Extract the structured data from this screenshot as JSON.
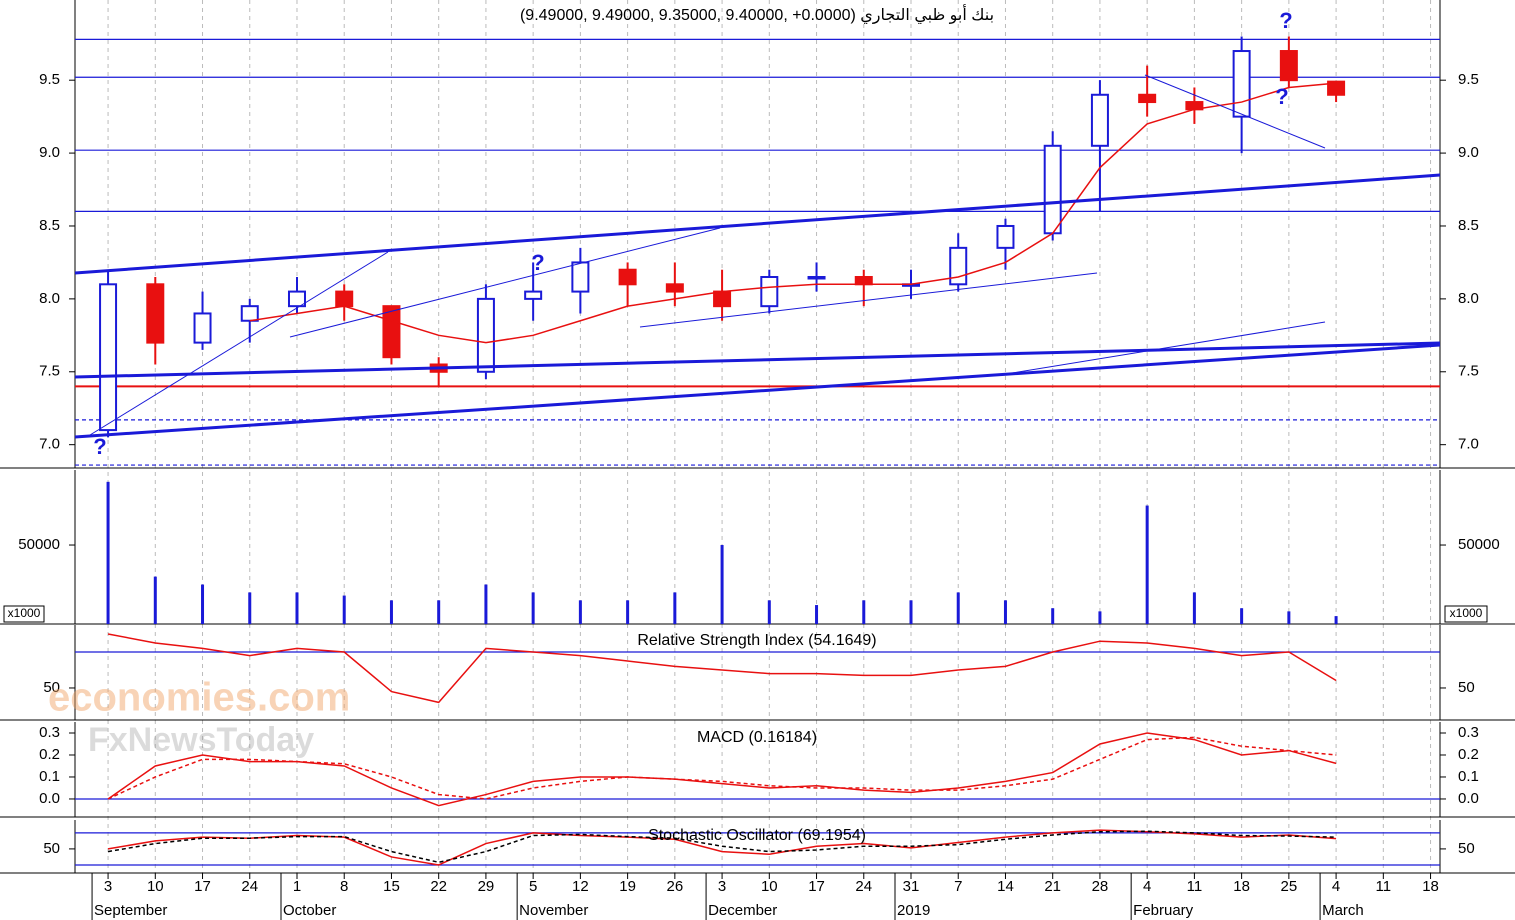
{
  "watermarks": [
    "economies.com",
    "FxNewsToday"
  ],
  "chart_data": [
    {
      "type": "candlestick",
      "title": "(9.49000, 9.49000, 9.35000, 9.40000, +0.0000) بنك أبو ظبي التجاري",
      "x": [
        0,
        1,
        2,
        3,
        4,
        5,
        6,
        7,
        8,
        9,
        10,
        11,
        12,
        13,
        14,
        15,
        16,
        17,
        18,
        19,
        20,
        21,
        22,
        23,
        24,
        25,
        26
      ],
      "open": [
        7.1,
        8.1,
        7.7,
        7.85,
        7.95,
        8.05,
        7.95,
        7.55,
        7.5,
        8.0,
        8.05,
        8.2,
        8.1,
        8.05,
        7.95,
        8.15,
        8.15,
        8.1,
        8.1,
        8.35,
        8.45,
        9.05,
        9.4,
        9.35,
        9.25,
        9.7,
        9.49
      ],
      "high": [
        8.2,
        8.15,
        8.05,
        8.0,
        8.15,
        8.1,
        7.95,
        7.6,
        8.1,
        8.25,
        8.35,
        8.25,
        8.25,
        8.2,
        8.2,
        8.25,
        8.2,
        8.2,
        8.45,
        8.55,
        9.15,
        9.5,
        9.6,
        9.45,
        9.8,
        9.8,
        9.49
      ],
      "low": [
        7.05,
        7.55,
        7.65,
        7.7,
        7.9,
        7.85,
        7.55,
        7.4,
        7.45,
        7.85,
        7.9,
        7.95,
        7.95,
        7.85,
        7.9,
        8.05,
        7.95,
        8.0,
        8.05,
        8.2,
        8.4,
        8.6,
        9.25,
        9.2,
        9.0,
        9.45,
        9.35
      ],
      "close": [
        8.1,
        7.7,
        7.9,
        7.95,
        8.05,
        7.95,
        7.6,
        7.5,
        8.0,
        8.05,
        8.25,
        8.1,
        8.05,
        7.95,
        8.15,
        8.15,
        8.1,
        8.1,
        8.35,
        8.5,
        9.05,
        9.4,
        9.35,
        9.3,
        9.7,
        9.5,
        9.4
      ],
      "up_color": "#1a1ad8",
      "down_color": "#e81010",
      "overlays": [
        {
          "color": "#e81010",
          "values": [
            null,
            null,
            null,
            7.85,
            7.9,
            7.95,
            7.85,
            7.75,
            7.7,
            7.75,
            7.85,
            7.95,
            8.0,
            8.05,
            8.08,
            8.1,
            8.1,
            8.1,
            8.15,
            8.25,
            8.45,
            8.9,
            9.2,
            9.3,
            9.35,
            9.45,
            9.48
          ]
        }
      ],
      "levels": [
        {
          "value": 9.78,
          "color": "#1a1ad8"
        },
        {
          "value": 9.52,
          "color": "#1a1ad8"
        },
        {
          "value": 9.02,
          "color": "#1a1ad8"
        },
        {
          "value": 8.6,
          "color": "#1a1ad8"
        },
        {
          "value": 7.4,
          "color": "#e81010",
          "width": 2
        },
        {
          "value": 7.17,
          "color": "#1a1ad8",
          "dashed": true
        },
        {
          "value": 6.86,
          "color": "#1a1ad8",
          "dashed": true
        }
      ],
      "annotations": [
        "?",
        "?",
        "?",
        "?"
      ],
      "xlim": [
        -0.7,
        28.2
      ],
      "xticks": [
        {
          "value": 0,
          "label": "3"
        },
        {
          "value": 1,
          "label": "10"
        },
        {
          "value": 2,
          "label": "17"
        },
        {
          "value": 3,
          "label": "24"
        },
        {
          "value": 4,
          "label": "1"
        },
        {
          "value": 5,
          "label": "8"
        },
        {
          "value": 6,
          "label": "15"
        },
        {
          "value": 7,
          "label": "22"
        },
        {
          "value": 8,
          "label": "29"
        },
        {
          "value": 9,
          "label": "5"
        },
        {
          "value": 10,
          "label": "12"
        },
        {
          "value": 11,
          "label": "19"
        },
        {
          "value": 12,
          "label": "26"
        },
        {
          "value": 13,
          "label": "3"
        },
        {
          "value": 14,
          "label": "10"
        },
        {
          "value": 15,
          "label": "17"
        },
        {
          "value": 16,
          "label": "24"
        },
        {
          "value": 17,
          "label": "31"
        },
        {
          "value": 18,
          "label": "7"
        },
        {
          "value": 19,
          "label": "14"
        },
        {
          "value": 20,
          "label": "21"
        },
        {
          "value": 21,
          "label": "28"
        },
        {
          "value": 22,
          "label": "4"
        },
        {
          "value": 23,
          "label": "11"
        },
        {
          "value": 24,
          "label": "18"
        },
        {
          "value": 25,
          "label": "25"
        },
        {
          "value": 26,
          "label": "4"
        },
        {
          "value": 27,
          "label": "11"
        },
        {
          "value": 28,
          "label": "18"
        }
      ],
      "month_labels": [
        {
          "value": 0,
          "label": "September"
        },
        {
          "value": 4,
          "label": "October"
        },
        {
          "value": 9,
          "label": "November"
        },
        {
          "value": 13,
          "label": "December"
        },
        {
          "value": 17,
          "label": "2019"
        },
        {
          "value": 22,
          "label": "February"
        },
        {
          "value": 26,
          "label": "March"
        }
      ],
      "ylim": [
        6.84,
        10.05
      ],
      "yticks": [
        {
          "value": 7,
          "label": "7.0"
        },
        7.5,
        {
          "value": 8,
          "label": "8.0"
        },
        8.5,
        {
          "value": 9,
          "label": "9.0"
        },
        9.5
      ]
    },
    {
      "type": "bar",
      "unit_label": "x1000",
      "color": "#1a1ad8",
      "values": [
        90000,
        30000,
        25000,
        20000,
        20000,
        18000,
        15000,
        15000,
        25000,
        20000,
        15000,
        15000,
        20000,
        50000,
        15000,
        12000,
        15000,
        15000,
        20000,
        15000,
        10000,
        8000,
        75000,
        20000,
        10000,
        8000,
        5000
      ],
      "ylim": [
        0,
        97500
      ],
      "yticks": [
        50000
      ]
    },
    {
      "type": "line",
      "title": "Relative Strength Index (54.1649)",
      "series": [
        {
          "color": "#e81010",
          "values": [
            80,
            75,
            72,
            68,
            72,
            70,
            48,
            42,
            72,
            70,
            68,
            65,
            62,
            60,
            58,
            58,
            57,
            57,
            60,
            62,
            70,
            76,
            75,
            72,
            68,
            70,
            54.1649
          ]
        }
      ],
      "levels": [
        {
          "value": 70,
          "color": "#1a1ad8"
        }
      ],
      "ylim": [
        32.2,
        85
      ],
      "yticks": [
        50
      ]
    },
    {
      "type": "line",
      "title": "MACD (0.16184)",
      "series": [
        {
          "color": "#e81010",
          "values": [
            0,
            0.15,
            0.2,
            0.17,
            0.17,
            0.15,
            0.05,
            -0.03,
            0.02,
            0.08,
            0.1,
            0.1,
            0.09,
            0.07,
            0.05,
            0.06,
            0.04,
            0.03,
            0.05,
            0.08,
            0.12,
            0.25,
            0.3,
            0.27,
            0.2,
            0.22,
            0.16184
          ]
        },
        {
          "color": "#e81010",
          "dashed": true,
          "values": [
            0,
            0.1,
            0.18,
            0.18,
            0.17,
            0.16,
            0.1,
            0.02,
            0,
            0.05,
            0.08,
            0.1,
            0.09,
            0.08,
            0.06,
            0.05,
            0.05,
            0.04,
            0.04,
            0.06,
            0.09,
            0.18,
            0.27,
            0.28,
            0.24,
            0.22,
            0.2
          ]
        }
      ],
      "levels": [
        {
          "value": 0,
          "color": "#1a1ad8"
        }
      ],
      "ylim": [
        -0.082,
        0.35
      ],
      "yticks": [
        {
          "value": 0,
          "label": "0.0"
        },
        0.1,
        0.2,
        0.3
      ]
    },
    {
      "type": "line",
      "title": "Stochastic Oscillator (69.1954)",
      "series": [
        {
          "color": "#e81010",
          "values": [
            50,
            65,
            72,
            70,
            75,
            72,
            35,
            20,
            60,
            80,
            75,
            72,
            68,
            45,
            40,
            55,
            60,
            52,
            62,
            72,
            80,
            85,
            82,
            78,
            72,
            76,
            69.1954
          ]
        },
        {
          "color": "#000000",
          "dashed": true,
          "values": [
            45,
            60,
            70,
            70,
            73,
            73,
            45,
            25,
            45,
            75,
            77,
            73,
            70,
            55,
            45,
            48,
            55,
            55,
            58,
            68,
            76,
            82,
            83,
            80,
            75,
            74,
            72
          ]
        }
      ],
      "levels": [
        {
          "value": 80,
          "color": "#1a1ad8"
        },
        {
          "value": 20,
          "color": "#1a1ad8"
        }
      ],
      "ylim": [
        5,
        104
      ],
      "yticks": [
        50
      ]
    }
  ]
}
